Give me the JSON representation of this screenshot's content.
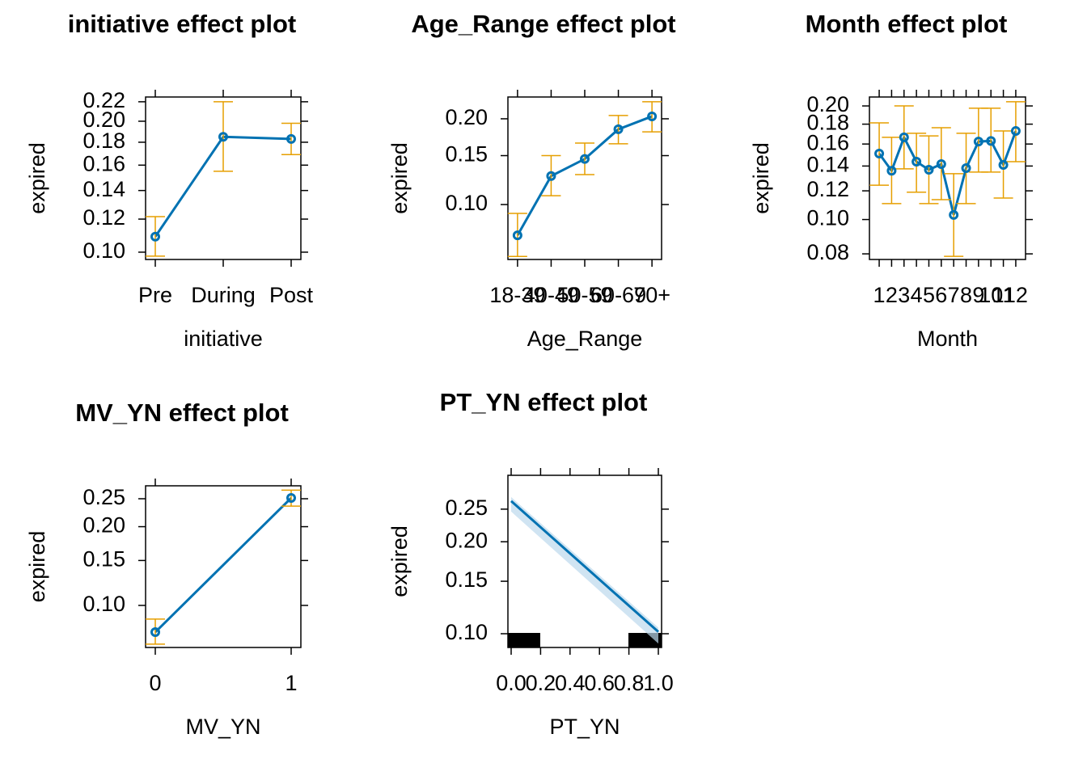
{
  "chart_data": [
    {
      "type": "line",
      "title": "initiative effect plot",
      "xlabel": "initiative",
      "ylabel": "expired",
      "yscale": "logit",
      "categories": [
        "Pre",
        "During",
        "Post"
      ],
      "values": [
        0.109,
        0.185,
        0.183
      ],
      "lower": [
        0.0978,
        0.155,
        0.169
      ],
      "upper": [
        0.1216,
        0.22,
        0.198
      ],
      "ci_style": "bars",
      "color": "#0072B2",
      "ci_color": "#E69F00",
      "ylim": [
        0.096,
        0.2251
      ],
      "yticks": [
        {
          "value": 0.1,
          "label": "0.10"
        },
        0.12,
        0.14,
        0.16,
        0.18,
        {
          "value": 0.2,
          "label": "0.20"
        },
        0.22
      ]
    },
    {
      "type": "line",
      "title": "Age_Range effect plot",
      "xlabel": "Age_Range",
      "ylabel": "expired",
      "yscale": "logit",
      "categories": [
        "18-39",
        "40-49",
        "50-59",
        "60-69",
        "70+"
      ],
      "values": [
        0.0767,
        0.127,
        0.146,
        0.1846,
        0.2037
      ],
      "lower": [
        0.0637,
        0.1078,
        0.1285,
        0.1648,
        0.181
      ],
      "upper": [
        0.0927,
        0.15,
        0.1658,
        0.205,
        0.227
      ],
      "ci_style": "bars",
      "color": "#0072B2",
      "ci_color": "#E69F00",
      "ylim": [
        0.062,
        0.235
      ],
      "yticks": [
        {
          "value": 0.1,
          "label": "0.10"
        },
        0.15,
        {
          "value": 0.2,
          "label": "0.20"
        }
      ]
    },
    {
      "type": "line",
      "title": "Month effect plot",
      "xlabel": "Month",
      "ylabel": "expired",
      "yscale": "logit",
      "categories": [
        "1",
        "2",
        "3",
        "4",
        "5",
        "6",
        "7",
        "8",
        "9",
        "10",
        "11",
        "12"
      ],
      "values": [
        0.151,
        0.136,
        0.1665,
        0.1438,
        0.1368,
        0.1417,
        0.103,
        0.1382,
        0.1624,
        0.163,
        0.141,
        0.1729
      ],
      "lower": [
        0.1243,
        0.1107,
        0.1376,
        0.119,
        0.1107,
        0.1135,
        0.0787,
        0.1107,
        0.1349,
        0.1349,
        0.1147,
        0.1438
      ],
      "upper": [
        0.1814,
        0.1665,
        0.2,
        0.1706,
        0.168,
        0.1763,
        0.1335,
        0.1706,
        0.1974,
        0.1974,
        0.1729,
        0.2048
      ],
      "ci_style": "bars",
      "color": "#0072B2",
      "ci_color": "#E69F00",
      "ylim": [
        0.0771,
        0.2104
      ],
      "yticks": [
        0.08,
        {
          "value": 0.1,
          "label": "0.10"
        },
        0.12,
        0.14,
        0.16,
        0.18,
        {
          "value": 0.2,
          "label": "0.20"
        }
      ]
    },
    {
      "type": "line",
      "title": "MV_YN effect plot",
      "xlabel": "MV_YN",
      "ylabel": "expired",
      "yscale": "logit",
      "categories": [
        "0",
        "1"
      ],
      "values": [
        0.0778,
        0.2515
      ],
      "lower": [
        0.0694,
        0.236
      ],
      "upper": [
        0.088,
        0.267
      ],
      "ci_style": "bars",
      "color": "#0072B2",
      "ci_color": "#E69F00",
      "ylim": [
        0.0672,
        0.2758
      ],
      "yticks": [
        {
          "value": 0.1,
          "label": "0.10"
        },
        0.15,
        {
          "value": 0.2,
          "label": "0.20"
        },
        0.25
      ]
    },
    {
      "type": "line",
      "title": "PT_YN effect plot",
      "xlabel": "PT_YN",
      "ylabel": "expired",
      "yscale": "logit",
      "x": [
        0,
        1
      ],
      "values": [
        0.2636,
        0.1015
      ],
      "lower": [
        0.246,
        0.0925
      ],
      "upper": [
        0.2705,
        0.105
      ],
      "ci_style": "band",
      "color": "#0072B2",
      "ci_color": "#bcd9ec",
      "xlim": [
        -0.022,
        1.022
      ],
      "xticks": [
        {
          "value": 0,
          "label": "0.0"
        },
        0.2,
        0.4,
        0.6,
        0.8,
        {
          "value": 1,
          "label": "1.0"
        }
      ],
      "ylim": [
        0.0896,
        0.31
      ],
      "yticks": [
        {
          "value": 0.1,
          "label": "0.10"
        },
        0.15,
        {
          "value": 0.2,
          "label": "0.20"
        },
        0.25
      ]
    }
  ]
}
